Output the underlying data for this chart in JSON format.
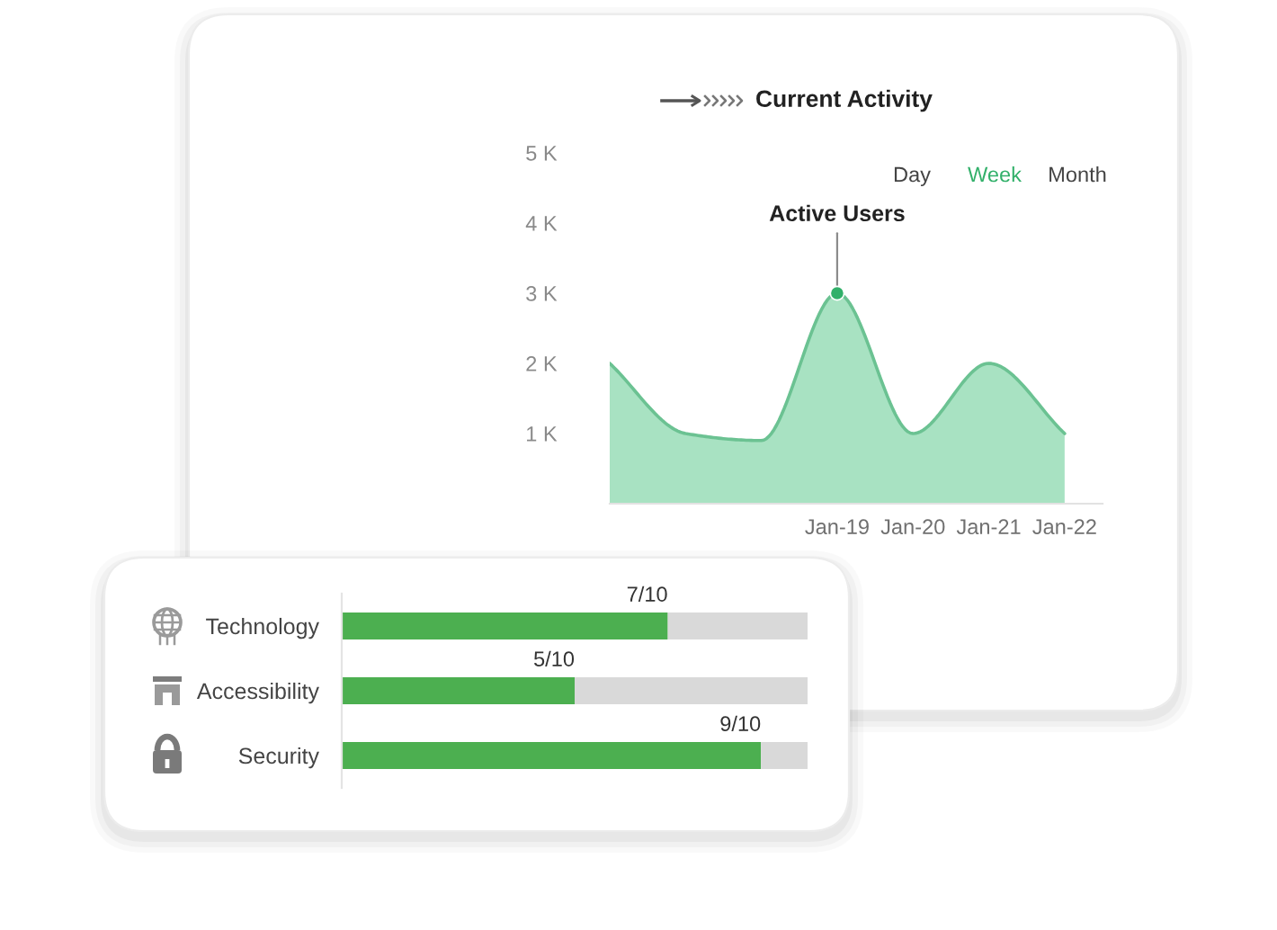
{
  "chart_data": [
    {
      "type": "area",
      "title": "Current Activity",
      "categories": [
        null,
        null,
        null,
        "Jan-19",
        "Jan-20",
        "Jan-21",
        "Jan-22"
      ],
      "series": [
        {
          "color": "#a8e2c2",
          "values": [
            2000,
            1000,
            900,
            3000,
            1000,
            2000,
            1000
          ]
        }
      ],
      "ylim": [
        0,
        5000
      ],
      "yticks": [
        {
          "value": 1000,
          "label": "1 K"
        },
        {
          "value": 2000,
          "label": "2 K"
        },
        {
          "value": 3000,
          "label": "3 K"
        },
        {
          "value": 4000,
          "label": "4 K"
        },
        {
          "value": 5000,
          "label": "5 K"
        }
      ],
      "annotations": [
        {
          "text": "Active Users",
          "x": "Jan-19",
          "y": 3000
        },
        "Day",
        "Week",
        "Month"
      ]
    },
    {
      "type": "bar",
      "orientation": "horizontal",
      "stacked": true,
      "categories": [
        "Technology",
        "Accessibility",
        "Security"
      ],
      "series": [
        {
          "color": "#4caf50",
          "values": [
            0.7,
            0.5,
            0.9
          ],
          "value_labels": [
            "7/10",
            "5/10",
            "9/10"
          ]
        },
        {
          "color": "#d9d9d9",
          "values": [
            0.3,
            0.5,
            0.1
          ]
        }
      ],
      "xlim": [
        0,
        1
      ],
      "tick_labels": "y"
    }
  ]
}
